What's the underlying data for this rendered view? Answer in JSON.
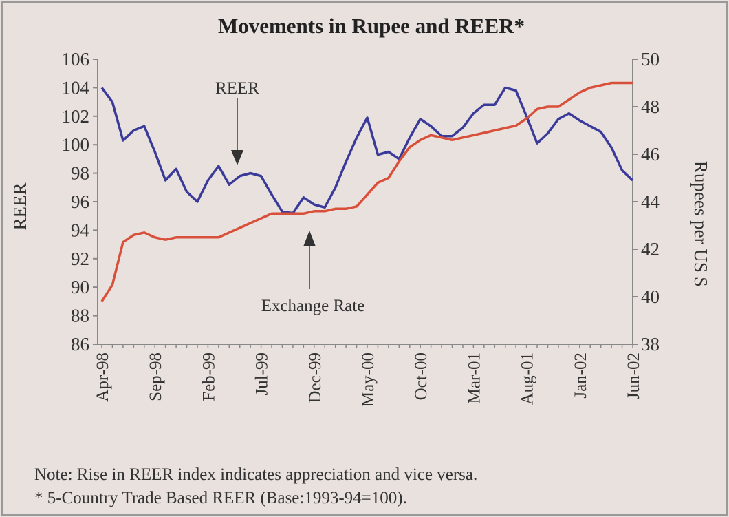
{
  "chart_data": {
    "type": "line",
    "title": "Movements in Rupee and REER*",
    "y_label": "REER",
    "y2_label": "Rupees per US $",
    "notes": [
      "Note: Rise in REER index indicates appreciation and vice versa.",
      "* 5-Country Trade Based REER (Base:1993-94=100)."
    ],
    "categories": [
      "Apr-98",
      null,
      null,
      null,
      null,
      "Sep-98",
      null,
      null,
      null,
      null,
      "Feb-99",
      null,
      null,
      null,
      null,
      "Jul-99",
      null,
      null,
      null,
      null,
      "Dec-99",
      null,
      null,
      null,
      null,
      "May-00",
      null,
      null,
      null,
      null,
      "Oct-00",
      null,
      null,
      null,
      null,
      "Mar-01",
      null,
      null,
      null,
      null,
      "Aug-01",
      null,
      null,
      null,
      null,
      "Jan-02",
      null,
      null,
      null,
      null,
      "Jun-02"
    ],
    "series": [
      {
        "name": "REER",
        "color": "#3a3a9a",
        "values": [
          104.0,
          103.0,
          100.3,
          101.0,
          101.3,
          99.5,
          97.5,
          98.3,
          96.7,
          96.0,
          97.5,
          98.5,
          97.2,
          97.8,
          98.0,
          97.8,
          96.5,
          95.3,
          95.2,
          96.3,
          95.8,
          95.6,
          97.0,
          98.8,
          100.5,
          101.9,
          99.3,
          99.5,
          99.0,
          100.5,
          101.8,
          101.3,
          100.6,
          100.6,
          101.2,
          102.2,
          102.8,
          102.8,
          104.0,
          103.8,
          102.0,
          100.1,
          100.8,
          101.8,
          102.2,
          101.7,
          101.3,
          100.9,
          99.8,
          98.2,
          97.5
        ]
      },
      {
        "name": "Exchange Rate",
        "color": "#d9503a",
        "axis": "y2",
        "values": [
          39.8,
          40.5,
          42.3,
          42.6,
          42.7,
          42.5,
          42.4,
          42.5,
          42.5,
          42.5,
          42.5,
          42.5,
          42.7,
          42.9,
          43.1,
          43.3,
          43.5,
          43.5,
          43.5,
          43.5,
          43.6,
          43.6,
          43.7,
          43.7,
          43.8,
          44.3,
          44.8,
          45.0,
          45.7,
          46.3,
          46.6,
          46.8,
          46.7,
          46.6,
          46.7,
          46.8,
          46.9,
          47.0,
          47.1,
          47.2,
          47.5,
          47.9,
          48.0,
          48.0,
          48.3,
          48.6,
          48.8,
          48.9,
          49.0,
          49.0,
          49.0
        ]
      }
    ],
    "ylim": [
      86,
      106
    ],
    "yticks": [
      86,
      88,
      90,
      92,
      94,
      96,
      98,
      100,
      102,
      104,
      106
    ],
    "y2lim": [
      38,
      50
    ],
    "y2ticks": [
      38,
      40,
      42,
      44,
      46,
      48,
      50
    ],
    "grid": false
  }
}
